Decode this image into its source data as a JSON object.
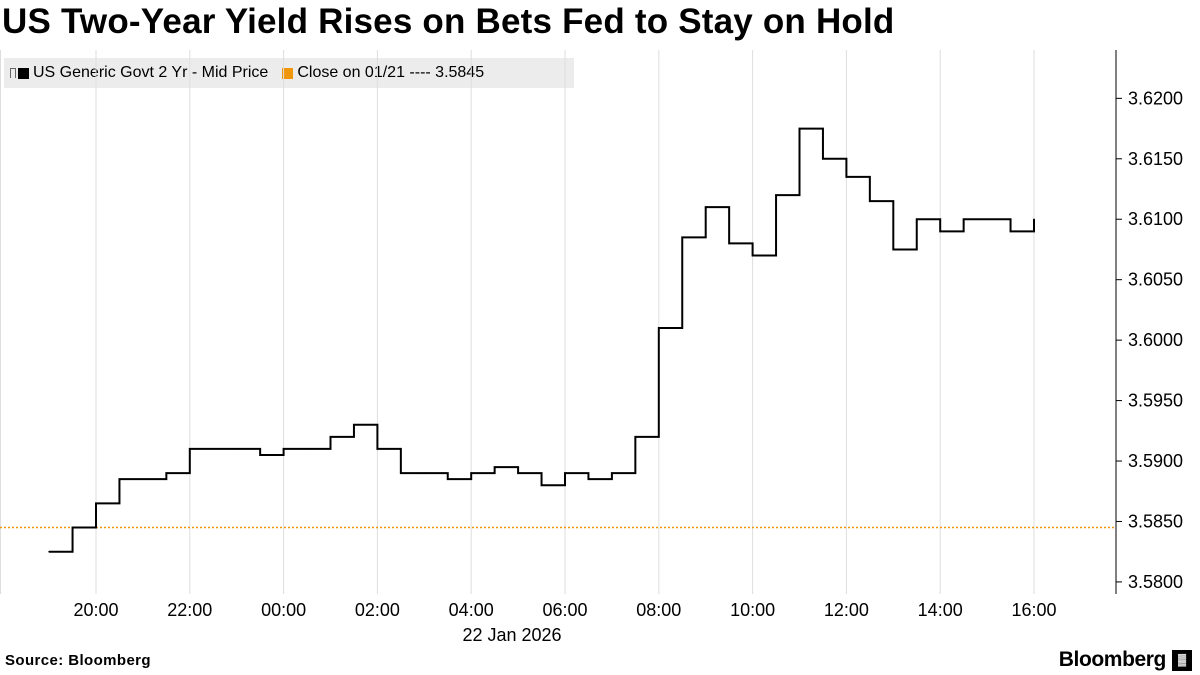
{
  "title": "US Two-Year Yield Rises on Bets Fed to Stay on Hold",
  "legend": {
    "series_label": "US Generic Govt 2 Yr - Mid Price",
    "close_label": "Close on 01/21 ---- 3.5845"
  },
  "source": "Source: Bloomberg",
  "brand": "Bloomberg",
  "brand_mark": "▓",
  "colors": {
    "series": "#000000",
    "close": "#f0960a",
    "grid": "#dedede"
  },
  "chart_data": {
    "type": "line",
    "title": "US Two-Year Yield Rises on Bets Fed to Stay on Hold",
    "date_label": "22 Jan 2026",
    "series": [
      {
        "name": "US Generic Govt 2 Yr - Mid Price",
        "x": [
          "19:00",
          "19:30",
          "20:00",
          "20:30",
          "21:00",
          "21:30",
          "22:00",
          "22:30",
          "23:00",
          "23:30",
          "00:00",
          "00:30",
          "01:00",
          "01:30",
          "02:00",
          "02:30",
          "03:00",
          "03:30",
          "04:00",
          "04:30",
          "05:00",
          "05:30",
          "06:00",
          "06:30",
          "07:00",
          "07:30",
          "08:00",
          "08:30",
          "09:00",
          "09:30",
          "10:00",
          "10:30",
          "11:00",
          "11:30",
          "12:00",
          "12:30",
          "13:00",
          "13:30",
          "14:00",
          "14:30",
          "15:00",
          "15:30",
          "16:00"
        ],
        "y": [
          3.5825,
          3.5845,
          3.5865,
          3.5885,
          3.5885,
          3.589,
          3.591,
          3.591,
          3.591,
          3.5905,
          3.591,
          3.591,
          3.592,
          3.593,
          3.591,
          3.589,
          3.589,
          3.5885,
          3.589,
          3.5895,
          3.589,
          3.588,
          3.589,
          3.5885,
          3.589,
          3.592,
          3.601,
          3.6085,
          3.611,
          3.608,
          3.607,
          3.612,
          3.6175,
          3.615,
          3.6135,
          3.6115,
          3.6075,
          3.61,
          3.609,
          3.61,
          3.61,
          3.609,
          3.61
        ]
      },
      {
        "name": "Close on 01/21",
        "constant": 3.5845
      }
    ],
    "x_ticks": [
      "20:00",
      "22:00",
      "00:00",
      "02:00",
      "04:00",
      "06:00",
      "08:00",
      "10:00",
      "12:00",
      "14:00",
      "16:00"
    ],
    "y_ticks": [
      "3.5800",
      "3.5850",
      "3.5900",
      "3.5950",
      "3.6000",
      "3.6050",
      "3.6100",
      "3.6150",
      "3.6200"
    ],
    "ylim": [
      3.579,
      3.624
    ],
    "xlabel": "22 Jan 2026",
    "ylabel": "",
    "grid": "vertical",
    "legend_position": "top-left"
  }
}
